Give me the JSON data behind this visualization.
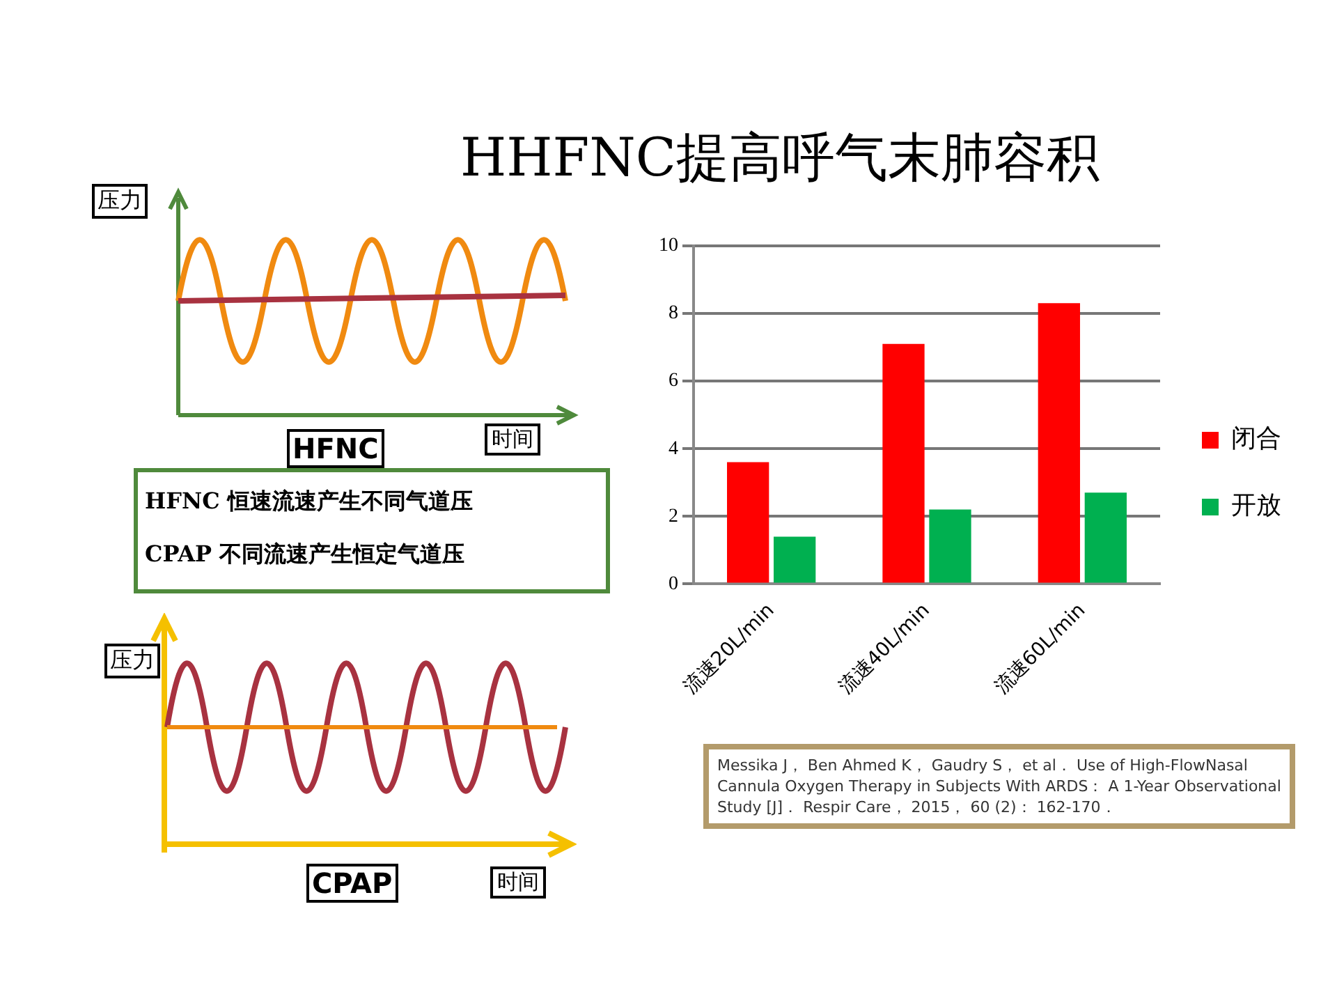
{
  "chart_data": {
    "type": "bar",
    "title": "HHFNC提高呼气末肺容积",
    "categories": [
      "流速20L/min",
      "流速40L/min",
      "流速60L/min"
    ],
    "series": [
      {
        "name": "闭合",
        "color": "#ff0000",
        "values": [
          3.6,
          7.1,
          8.3
        ]
      },
      {
        "name": "开放",
        "color": "#00b050",
        "values": [
          1.4,
          2.2,
          2.7
        ]
      }
    ],
    "ylim": [
      0,
      10
    ],
    "yticks": [
      0,
      2,
      4,
      6,
      8,
      10
    ],
    "grid": "y",
    "legend": "right",
    "annotations": [
      "压力",
      "时间",
      "HFNC",
      "HFNC 恒速流速产生不同气道压",
      "CPAP 不同流速产生恒定气道压",
      "压力",
      "CPAP",
      "时间",
      "Messika J， Ben Ahmed K， Gaudry S， et al． Use of High-FlowNasal Cannula Oxygen Therapy in Subjects With ARDS： A 1-Year Observational Study [J]． Respir Care， 2015， 60 (2)： 162-170．"
    ]
  }
}
